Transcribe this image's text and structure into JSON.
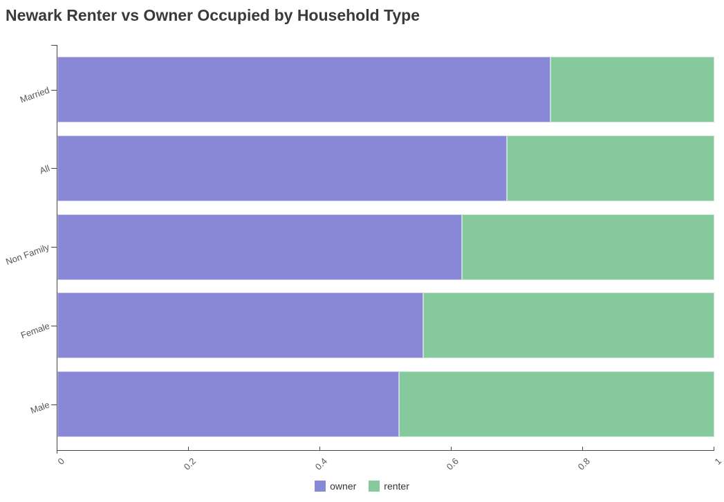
{
  "page": {
    "title": "Newark Renter vs Owner Occupied by Household Type"
  },
  "chart_data": {
    "type": "bar",
    "orientation": "horizontal",
    "stacked": true,
    "title": "Newark Renter vs Owner Occupied by Household Type",
    "categories": [
      "Married",
      "All",
      "Non Family",
      "Female",
      "Male"
    ],
    "series": [
      {
        "name": "owner",
        "color": "#8988d6",
        "values": [
          0.75,
          0.684,
          0.616,
          0.557,
          0.52
        ]
      },
      {
        "name": "renter",
        "color": "#85c99d",
        "values": [
          0.25,
          0.316,
          0.384,
          0.443,
          0.48
        ]
      }
    ],
    "xlabel": "",
    "ylabel": "",
    "xlim": [
      0,
      1
    ],
    "x_ticks": [
      0,
      0.2,
      0.4,
      0.6,
      0.8,
      1
    ],
    "x_tick_labels": [
      "0",
      "0.2",
      "0.4",
      "0.6",
      "0.8",
      "1"
    ],
    "grid": false,
    "legend_position": "bottom-center",
    "legend_entries": [
      "owner",
      "renter"
    ],
    "colors": {
      "owner": "#8988d6",
      "renter": "#85c99d",
      "axis": "#444444",
      "tick_label": "#555555",
      "title": "#3a3a3a",
      "background": "#ffffff"
    }
  }
}
